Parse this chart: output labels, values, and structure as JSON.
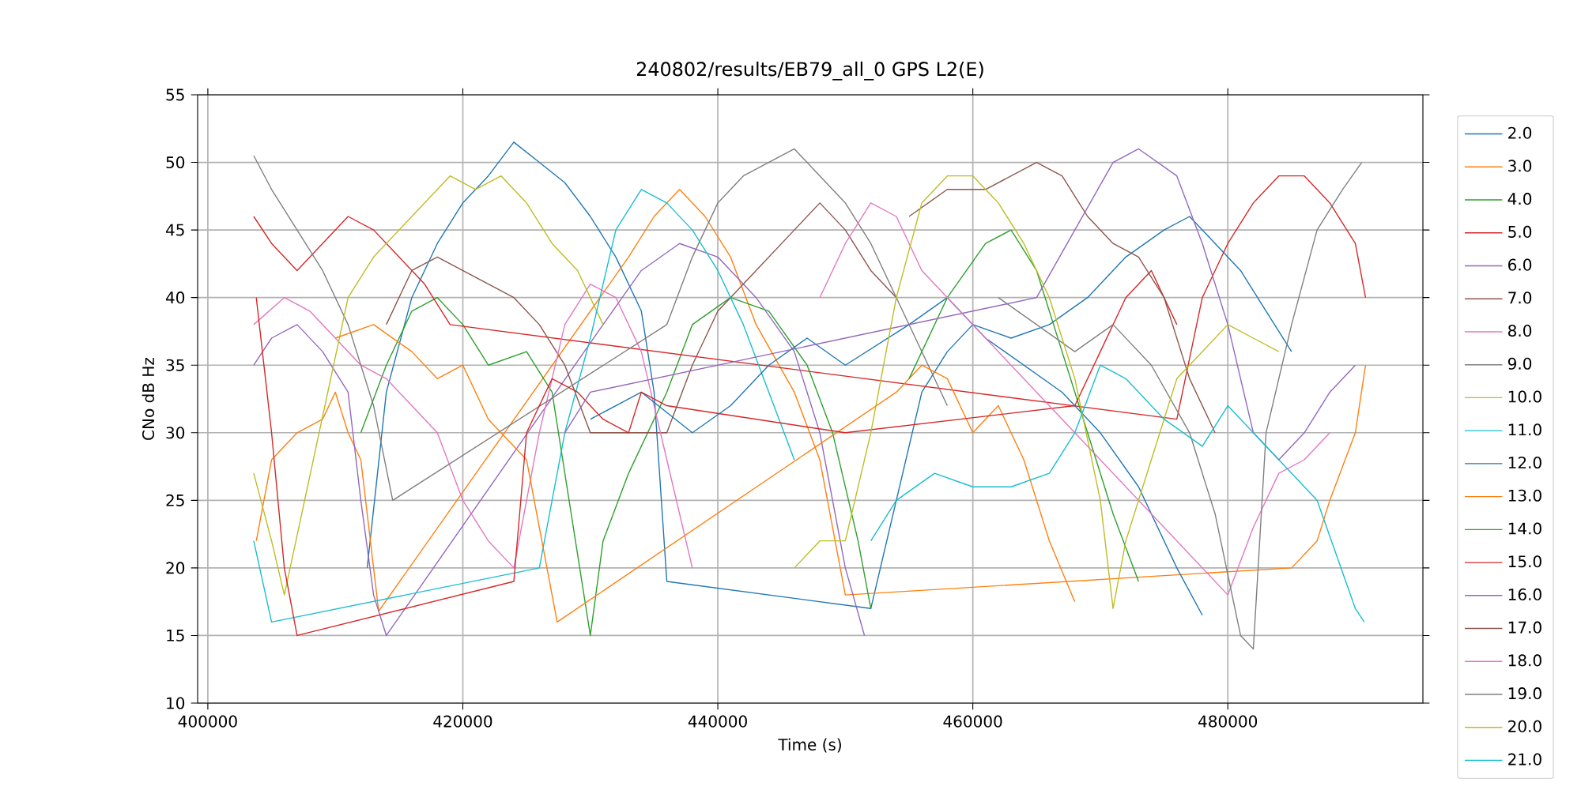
{
  "chart_data": {
    "type": "line",
    "title": "240802/results/EB79_all_0 GPS L2(E)",
    "xlabel": "Time (s)",
    "ylabel": "CNo dB Hz",
    "xlim": [
      399200,
      495300
    ],
    "ylim": [
      10,
      55
    ],
    "xticks": [
      400000,
      420000,
      440000,
      460000,
      480000
    ],
    "yticks": [
      10,
      15,
      20,
      25,
      30,
      35,
      40,
      45,
      50,
      55
    ],
    "grid": true,
    "legend": "right",
    "series": [
      {
        "name": "2.0",
        "color": "#1f77b4",
        "x": [
          412500,
          414000,
          416000,
          418000,
          420000,
          422000,
          424000,
          426000,
          428000,
          430000,
          432000,
          434000,
          435000,
          436000,
          452000,
          454000,
          456000,
          458000,
          460000,
          463000,
          466000,
          469000,
          472000,
          475000,
          477000,
          479000,
          481000,
          483000,
          485000
        ],
        "values": [
          20,
          33,
          40,
          44,
          47,
          49,
          51.5,
          50,
          48.5,
          46,
          43,
          39,
          33,
          19,
          17,
          25,
          33,
          36,
          38,
          37,
          38,
          40,
          43,
          45,
          46,
          44,
          42,
          39,
          36
        ]
      },
      {
        "name": "3.0",
        "color": "#ff7f0e",
        "x": [
          403800,
          405000,
          407000,
          409000,
          410000,
          411000,
          412000,
          413400,
          433000,
          435000,
          437000,
          439000,
          441000,
          443000,
          446000,
          448000,
          450000,
          485000,
          487000,
          488000,
          490000,
          490800
        ],
        "values": [
          22,
          28,
          30,
          31,
          33,
          30,
          28,
          16.8,
          43,
          46,
          48,
          46,
          43,
          38,
          33,
          28,
          18,
          20,
          22,
          25,
          30,
          35
        ]
      },
      {
        "name": "4.0",
        "color": "#2ca02c",
        "x": [
          412000,
          414000,
          416000,
          418000,
          420000,
          422000,
          425000,
          427000,
          430000,
          431000,
          433000,
          436000,
          438000,
          441000,
          444000,
          447000,
          449000,
          451000,
          452000
        ],
        "values": [
          30,
          35,
          39,
          40,
          38,
          35,
          36,
          33,
          15,
          22,
          27,
          33,
          38,
          40,
          39,
          35,
          30,
          22,
          17
        ]
      },
      {
        "name": "5.0",
        "color": "#d62728",
        "x": [
          403600,
          405000,
          407000,
          409000,
          411000,
          413000,
          415000,
          417000,
          419000,
          476000,
          478000,
          480000,
          482000,
          484000,
          486000,
          488000,
          490000,
          490800
        ],
        "values": [
          46,
          44,
          42,
          44,
          46,
          45,
          43,
          41,
          38,
          31,
          40,
          44,
          47,
          49,
          49,
          47,
          44,
          40
        ]
      },
      {
        "name": "6.0",
        "color": "#9467bd",
        "x": [
          403600,
          405000,
          407000,
          409000,
          411000,
          412000,
          413000,
          414000,
          431000,
          434000,
          437000,
          440000,
          443000,
          446000,
          448000,
          450000,
          451500
        ],
        "values": [
          35,
          37,
          38,
          36,
          33,
          25,
          18,
          15,
          38,
          42,
          44,
          43,
          40,
          36,
          30,
          20,
          15
        ]
      },
      {
        "name": "7.0",
        "color": "#8c564b",
        "x": [
          414000,
          416000,
          418000,
          420000,
          422000,
          424000,
          426000,
          428000,
          430000,
          436000,
          438000,
          440000,
          443000,
          446000,
          448000,
          450000,
          452000,
          454000
        ],
        "values": [
          38,
          42,
          43,
          42,
          41,
          40,
          38,
          35,
          30,
          30,
          35,
          39,
          42,
          45,
          47,
          45,
          42,
          40
        ]
      },
      {
        "name": "8.0",
        "color": "#e377c2",
        "x": [
          403600,
          406000,
          408000,
          410000,
          412000,
          414000,
          416000,
          418000,
          420000,
          422000,
          424000,
          426000,
          428000,
          430000,
          432000,
          434000,
          436000,
          438000
        ],
        "values": [
          38,
          40,
          39,
          37,
          35,
          34,
          32,
          30,
          25,
          22,
          20,
          30,
          38,
          41,
          40,
          36,
          28,
          20
        ]
      },
      {
        "name": "9.0",
        "color": "#7f7f7f",
        "x": [
          403600,
          405000,
          407000,
          409000,
          411000,
          413000,
          414500,
          436000,
          438000,
          440000,
          442000,
          444000,
          446000,
          448000,
          450000,
          452000,
          454000,
          456000,
          458000
        ],
        "values": [
          50.5,
          48,
          45,
          42,
          38,
          32,
          25,
          38,
          43,
          47,
          49,
          50,
          51,
          49,
          47,
          44,
          40,
          36,
          32
        ]
      },
      {
        "name": "10.0",
        "color": "#bcbd22",
        "x": [
          403600,
          405000,
          406000,
          411000,
          413000,
          415000,
          417000,
          419000,
          421000,
          423000,
          425000,
          427000,
          429000,
          431000
        ],
        "values": [
          27,
          22,
          18,
          40,
          43,
          45,
          47,
          49,
          48,
          49,
          47,
          44,
          42,
          38
        ]
      },
      {
        "name": "11.0",
        "color": "#17becf",
        "x": [
          403600,
          405000,
          426000,
          428000,
          430000,
          432000,
          434000,
          436000,
          438000,
          440000,
          442000,
          444000,
          446000
        ],
        "values": [
          22,
          16,
          20,
          30,
          37,
          45,
          48,
          47,
          45,
          42,
          38,
          33,
          28
        ]
      },
      {
        "name": "12.0",
        "color": "#1f77b4",
        "x": [
          430000,
          434000,
          438000,
          441000,
          444000,
          447000,
          450000,
          455000,
          458000,
          461000,
          464000,
          467000,
          470000,
          473000,
          476000,
          478000
        ],
        "values": [
          31,
          33,
          30,
          32,
          35,
          37,
          35,
          38,
          40,
          37,
          35,
          33,
          30,
          26,
          20,
          16.5
        ]
      },
      {
        "name": "13.0",
        "color": "#ff7f0e",
        "x": [
          410000,
          413000,
          416000,
          418000,
          420000,
          422000,
          425000,
          427400,
          454000,
          456000,
          458000,
          460000,
          462000,
          464000,
          466000,
          468000
        ],
        "values": [
          37,
          38,
          36,
          34,
          35,
          31,
          28,
          16,
          33,
          35,
          34,
          30,
          32,
          28,
          22,
          17.5
        ]
      },
      {
        "name": "14.0",
        "color": "#2ca02c",
        "x": [
          455000,
          458000,
          461000,
          463000,
          465000,
          467000,
          469000,
          471000,
          473000
        ],
        "values": [
          34,
          40,
          44,
          45,
          42,
          36,
          30,
          24,
          19
        ]
      },
      {
        "name": "15.0",
        "color": "#d62728",
        "x": [
          403800,
          405000,
          406000,
          407000,
          424000,
          425000,
          427000,
          429000,
          431000,
          433000,
          434000,
          436000,
          450000,
          468000,
          470000,
          472000,
          474000,
          476000
        ],
        "values": [
          40,
          30,
          20,
          15,
          19,
          30,
          34,
          33,
          31,
          30,
          33,
          32,
          30,
          32,
          36,
          40,
          42,
          38
        ]
      },
      {
        "name": "16.0",
        "color": "#9467bd",
        "x": [
          428000,
          430000,
          465000,
          468000,
          471000,
          473000,
          476000,
          478000,
          480000,
          482000,
          484000,
          486000,
          488000,
          490000
        ],
        "values": [
          30,
          33,
          40,
          45,
          50,
          51,
          49,
          44,
          38,
          30,
          28,
          30,
          33,
          35
        ]
      },
      {
        "name": "17.0",
        "color": "#8c564b",
        "x": [
          455000,
          458000,
          461000,
          463000,
          465000,
          467000,
          469000,
          471000,
          473000,
          475000,
          477000,
          479000
        ],
        "values": [
          46,
          48,
          48,
          49,
          50,
          49,
          46,
          44,
          43,
          40,
          34,
          30
        ]
      },
      {
        "name": "18.0",
        "color": "#e377c2",
        "x": [
          448000,
          450000,
          452000,
          454000,
          456000,
          480000,
          482000,
          484000,
          486000,
          488000
        ],
        "values": [
          40,
          44,
          47,
          46,
          42,
          18,
          23,
          27,
          28,
          30
        ]
      },
      {
        "name": "19.0",
        "color": "#7f7f7f",
        "x": [
          462000,
          465000,
          468000,
          471000,
          474000,
          477000,
          479000,
          481000,
          482000,
          483000,
          485000,
          487000,
          489000,
          490500
        ],
        "values": [
          40,
          38,
          36,
          38,
          35,
          30,
          24,
          15,
          14,
          30,
          38,
          45,
          48,
          50
        ]
      },
      {
        "name": "20.0",
        "color": "#bcbd22",
        "x": [
          446000,
          448000,
          450000,
          452000,
          454000,
          456000,
          458000,
          460000,
          462000,
          464000,
          466000,
          468000,
          470000,
          471000,
          472000,
          474000,
          476000,
          478000,
          480000,
          482000,
          484000
        ],
        "values": [
          20,
          22,
          22,
          30,
          40,
          47,
          49,
          49,
          47,
          44,
          40,
          34,
          25,
          17,
          22,
          28,
          34,
          36,
          38,
          37,
          36
        ]
      },
      {
        "name": "21.0",
        "color": "#17becf",
        "x": [
          452000,
          454000,
          457000,
          460000,
          463000,
          466000,
          468000,
          470000,
          472000,
          475000,
          478000,
          480000,
          482000,
          484000,
          487000,
          490000,
          490700
        ],
        "values": [
          22,
          25,
          27,
          26,
          26,
          27,
          30,
          35,
          34,
          31,
          29,
          32,
          30,
          28,
          25,
          17,
          16
        ]
      }
    ]
  }
}
